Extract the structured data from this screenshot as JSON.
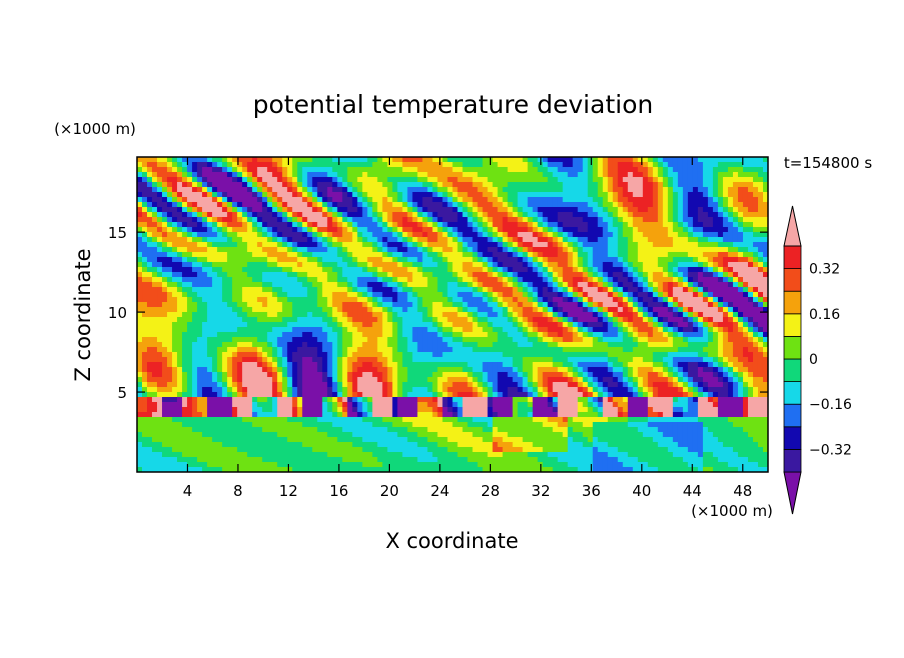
{
  "chart_data": {
    "type": "heatmap",
    "title": "potential temperature deviation",
    "xlabel": "X coordinate",
    "ylabel": "Z coordinate",
    "x_unit": "(×1000 m)",
    "y_unit": "(×1000 m)",
    "time_label": "t=154800 s",
    "xlim": [
      0,
      50
    ],
    "ylim": [
      0,
      19.7
    ],
    "x_ticks": [
      4,
      8,
      12,
      16,
      20,
      24,
      28,
      32,
      36,
      40,
      44,
      48
    ],
    "y_ticks": [
      5,
      10,
      15
    ],
    "colorbar": {
      "levels": [
        -0.4,
        -0.32,
        -0.24,
        -0.16,
        -0.08,
        0,
        0.08,
        0.16,
        0.24,
        0.32,
        0.4
      ],
      "tick_values": [
        -0.32,
        -0.16,
        0,
        0.16,
        0.32
      ],
      "tick_labels": [
        "−0.32",
        "−0.16",
        "0",
        "0.16",
        "0.32"
      ],
      "colors": [
        "#7a10a8",
        "#3a18a0",
        "#1208b0",
        "#1f6ff2",
        "#16d8e8",
        "#10d87a",
        "#6ee212",
        "#f4f216",
        "#f5a20c",
        "#f24d1a",
        "#ec2224",
        "#f6a6a6"
      ]
    },
    "field_description_omitted": false
  }
}
